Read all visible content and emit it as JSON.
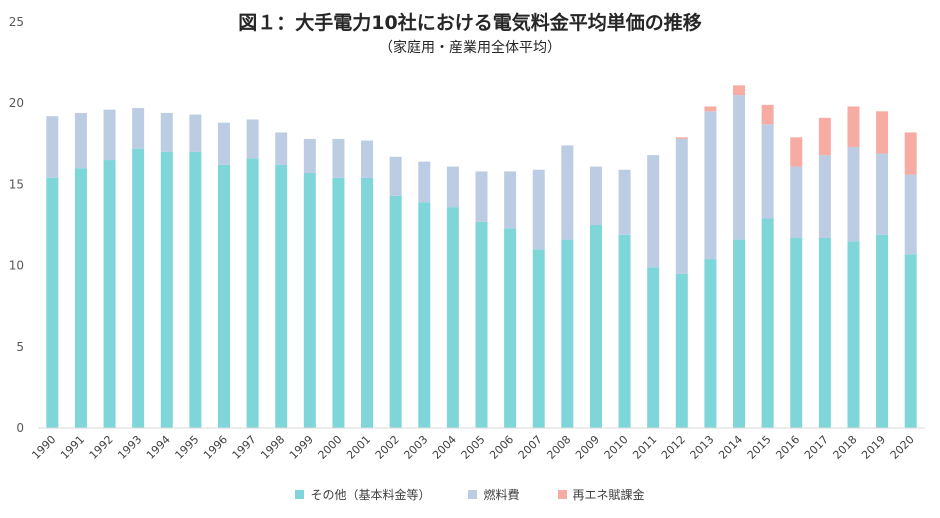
{
  "chart_data": {
    "type": "bar",
    "stacked": true,
    "title": "図１：大手電力10社における電気料金平均単価の推移",
    "subtitle": "（家庭用・産業用全体平均）",
    "categories": [
      "1990",
      "1991",
      "1992",
      "1993",
      "1994",
      "1995",
      "1996",
      "1997",
      "1998",
      "1999",
      "2000",
      "2001",
      "2002",
      "2003",
      "2004",
      "2005",
      "2006",
      "2007",
      "2008",
      "2009",
      "2010",
      "2011",
      "2012",
      "2013",
      "2014",
      "2015",
      "2016",
      "2017",
      "2018",
      "2019",
      "2020"
    ],
    "series": [
      {
        "name": "その他（基本料金等）",
        "color": "#7ed6d9",
        "values": [
          15.4,
          16.0,
          16.5,
          17.2,
          17.0,
          17.0,
          16.2,
          16.6,
          16.2,
          15.7,
          15.4,
          15.4,
          14.3,
          13.9,
          13.6,
          12.7,
          12.3,
          11.0,
          11.6,
          12.5,
          11.9,
          9.9,
          9.5,
          10.4,
          11.6,
          12.9,
          11.7,
          11.7,
          11.5,
          11.9,
          10.7
        ]
      },
      {
        "name": "燃料費",
        "color": "#bccde3",
        "values": [
          3.8,
          3.4,
          3.1,
          2.5,
          2.4,
          2.3,
          2.6,
          2.4,
          2.0,
          2.1,
          2.4,
          2.3,
          2.4,
          2.5,
          2.5,
          3.1,
          3.5,
          4.9,
          5.8,
          3.6,
          4.0,
          6.9,
          8.3,
          9.1,
          8.9,
          5.8,
          4.4,
          5.1,
          5.8,
          5.0,
          4.9
        ]
      },
      {
        "name": "再エネ賦課金",
        "color": "#f7aca3",
        "values": [
          0,
          0,
          0,
          0,
          0,
          0,
          0,
          0,
          0,
          0,
          0,
          0,
          0,
          0,
          0,
          0,
          0,
          0,
          0,
          0,
          0,
          0,
          0.1,
          0.3,
          0.6,
          1.2,
          1.8,
          2.3,
          2.5,
          2.6,
          2.6
        ]
      }
    ],
    "ylim": [
      0,
      25
    ],
    "yticks": [
      0,
      5,
      10,
      15,
      20,
      25
    ],
    "xlabel": "",
    "ylabel": "",
    "legend_position": "bottom",
    "grid": false
  }
}
